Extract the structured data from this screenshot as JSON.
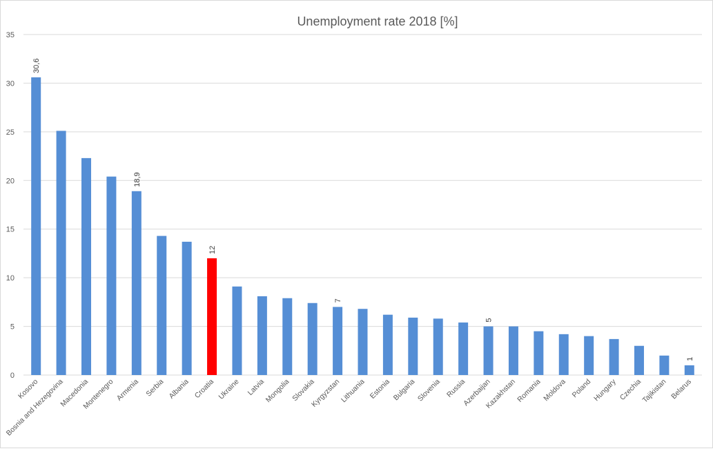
{
  "chart_data": {
    "type": "bar",
    "title": "Unemployment rate 2018 [%]",
    "xlabel": "",
    "ylabel": "",
    "ylim": [
      0,
      35
    ],
    "yticks": [
      0,
      5,
      10,
      15,
      20,
      25,
      30,
      35
    ],
    "grid": true,
    "legend": "none",
    "categories": [
      "Kosovo",
      "Bosnia and Hezegovina",
      "Macedonia",
      "Montenegro",
      "Armenia",
      "Serbia",
      "Albania",
      "Croatia",
      "Ukraine",
      "Latvia",
      "Mongolia",
      "Slovakia",
      "Kyrgyzstan",
      "Lithuania",
      "Estonia",
      "Bulgaria",
      "Slovenia",
      "Russia",
      "Azerbaijan",
      "Kazakhstan",
      "Romania",
      "Moldova",
      "Poland",
      "Hungary",
      "Czechia",
      "Tajikistan",
      "Belarus"
    ],
    "values": [
      30.6,
      25.1,
      22.3,
      20.4,
      18.9,
      14.3,
      13.7,
      12,
      9.1,
      8.1,
      7.9,
      7.4,
      7,
      6.8,
      6.2,
      5.9,
      5.8,
      5.4,
      5,
      5,
      4.5,
      4.2,
      4.0,
      3.7,
      3.0,
      2.0,
      1
    ],
    "data_labels": {
      "Kosovo": "30,6",
      "Armenia": "18,9",
      "Croatia": "12",
      "Kyrgyzstan": "7",
      "Azerbaijan": "5",
      "Belarus": "1"
    },
    "highlight": "Croatia",
    "colors": {
      "bar": "#558ed5",
      "highlight": "#ff0000",
      "grid": "#d9d9d9",
      "text": "#595959"
    }
  }
}
